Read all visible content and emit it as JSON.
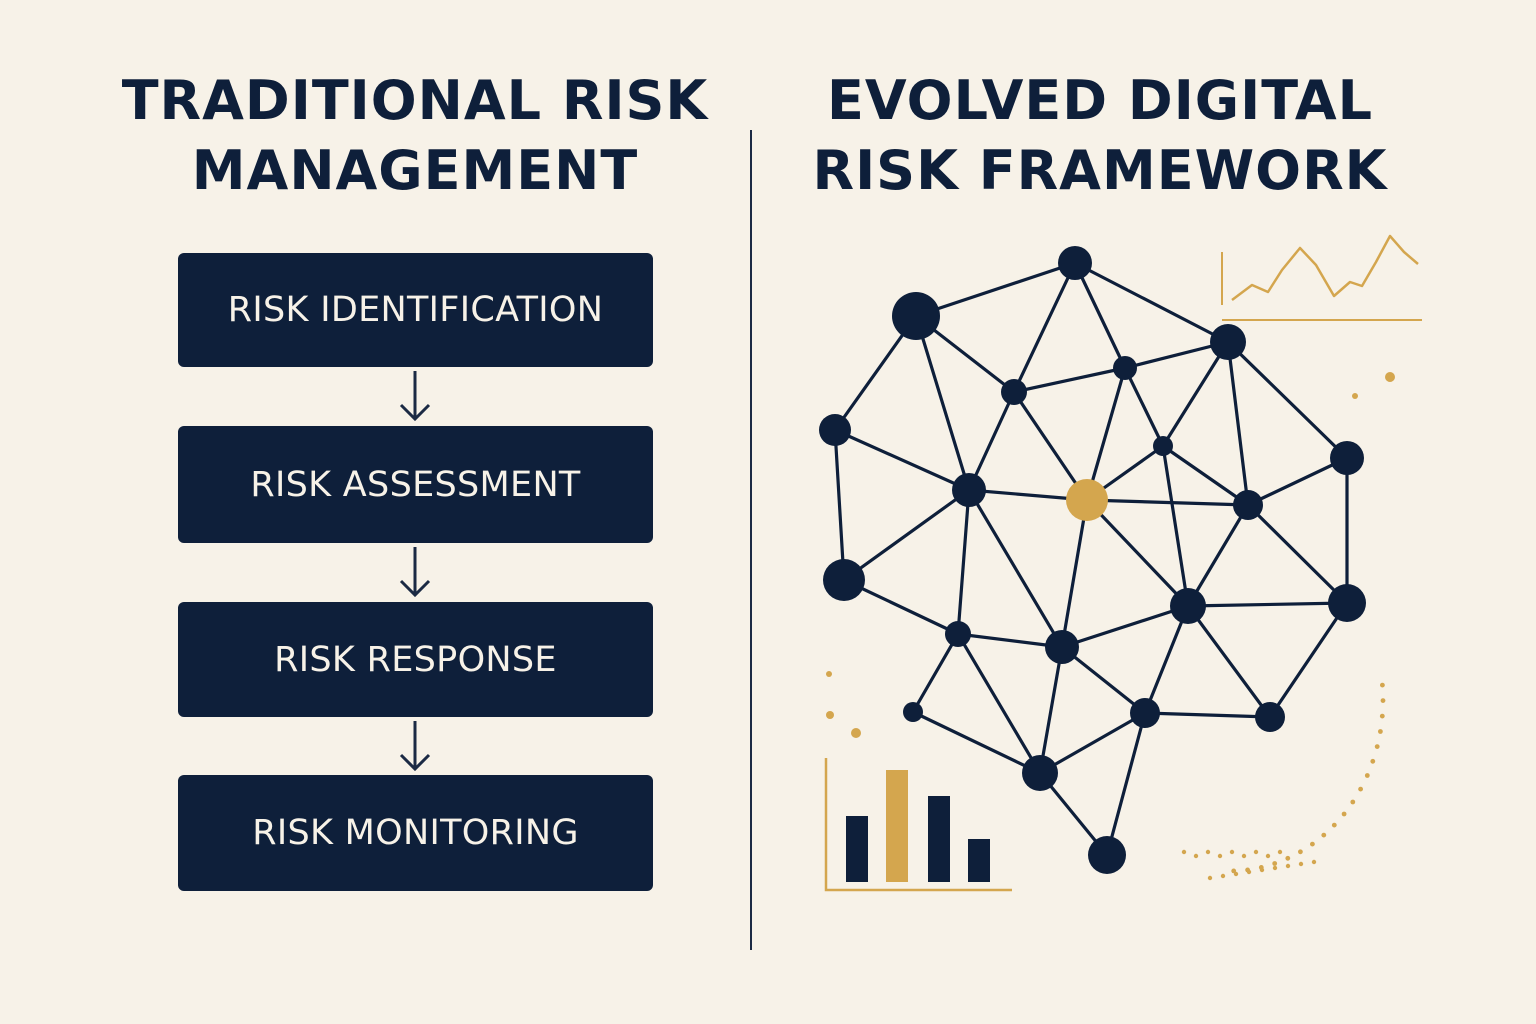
{
  "left_panel": {
    "title_line1": "TRADITIONAL RISK",
    "title_line2": "MANAGEMENT",
    "steps": [
      "RISK IDENTIFICATION",
      "RISK ASSESSMENT",
      "RISK RESPONSE",
      "RISK MONITORING"
    ]
  },
  "right_panel": {
    "title_line1": "EVOLVED DIGITAL",
    "title_line2": "RISK FRAMEWORK"
  },
  "colors": {
    "background": "#f7f2e8",
    "navy": "#0e1f3a",
    "gold": "#d4a64e"
  },
  "icons": [
    "network-graph-icon",
    "line-chart-icon",
    "bar-chart-icon",
    "down-arrow-icon"
  ]
}
